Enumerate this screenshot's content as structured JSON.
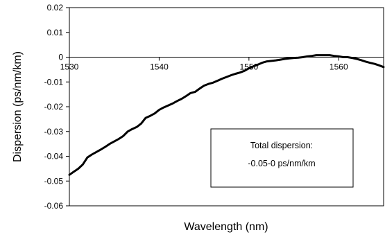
{
  "chart_data": {
    "type": "line",
    "xlabel": "Wavelength (nm)",
    "ylabel": "Dispersion (ps/nm/km)",
    "xlim": [
      1530,
      1565
    ],
    "ylim": [
      -0.06,
      0.02
    ],
    "x_ticks": [
      "1530",
      "1540",
      "1550",
      "1560"
    ],
    "x_tick_values": [
      1530,
      1540,
      1550,
      1560
    ],
    "y_ticks": [
      "0.02",
      "0.01",
      "0",
      "-0.01",
      "-0.02",
      "-0.03",
      "-0.04",
      "-0.05",
      "-0.06"
    ],
    "y_tick_values": [
      0.02,
      0.01,
      0,
      -0.01,
      -0.02,
      -0.03,
      -0.04,
      -0.05,
      -0.06
    ],
    "grid": false,
    "annotation": {
      "line1": "Total dispersion:",
      "line2": "-0.05-0 ps/nm/km"
    },
    "series": [
      {
        "color": "#000000",
        "x": [
          1530.0,
          1530.5,
          1531.0,
          1531.5,
          1532.0,
          1532.5,
          1533.0,
          1533.5,
          1534.0,
          1534.5,
          1535.0,
          1535.5,
          1536.0,
          1536.5,
          1537.0,
          1537.5,
          1538.0,
          1538.5,
          1539.0,
          1539.5,
          1540.0,
          1540.5,
          1541.0,
          1541.5,
          1542.0,
          1542.5,
          1543.0,
          1543.5,
          1544.0,
          1544.5,
          1545.0,
          1545.5,
          1546.0,
          1546.5,
          1547.0,
          1547.5,
          1548.0,
          1548.5,
          1549.0,
          1549.5,
          1550.0,
          1550.5,
          1551.0,
          1551.5,
          1552.0,
          1552.5,
          1553.0,
          1553.5,
          1554.0,
          1554.5,
          1555.0,
          1555.5,
          1556.0,
          1556.5,
          1557.0,
          1557.5,
          1558.0,
          1558.5,
          1559.0,
          1559.5,
          1560.0,
          1560.5,
          1561.0,
          1561.5,
          1562.0,
          1562.5,
          1563.0,
          1563.5,
          1564.0,
          1564.5,
          1565.0
        ],
        "values": [
          -0.0475,
          -0.0462,
          -0.045,
          -0.0433,
          -0.0405,
          -0.0393,
          -0.0383,
          -0.0373,
          -0.0362,
          -0.035,
          -0.034,
          -0.033,
          -0.0318,
          -0.03,
          -0.029,
          -0.0282,
          -0.0268,
          -0.0245,
          -0.0237,
          -0.0227,
          -0.0213,
          -0.0203,
          -0.0195,
          -0.0187,
          -0.0177,
          -0.0168,
          -0.0157,
          -0.0145,
          -0.014,
          -0.0127,
          -0.0115,
          -0.0108,
          -0.0103,
          -0.0095,
          -0.0087,
          -0.008,
          -0.0073,
          -0.0067,
          -0.0062,
          -0.0055,
          -0.0045,
          -0.0037,
          -0.003,
          -0.0022,
          -0.0017,
          -0.0015,
          -0.0013,
          -0.001,
          -0.0007,
          -0.0005,
          -0.0003,
          -0.0002,
          0.0,
          0.0003,
          0.0005,
          0.0008,
          0.0008,
          0.0008,
          0.0008,
          0.0005,
          0.0003,
          0.0,
          0.0,
          -0.0003,
          -0.0007,
          -0.0012,
          -0.0018,
          -0.0023,
          -0.0027,
          -0.0033,
          -0.004
        ]
      }
    ]
  }
}
